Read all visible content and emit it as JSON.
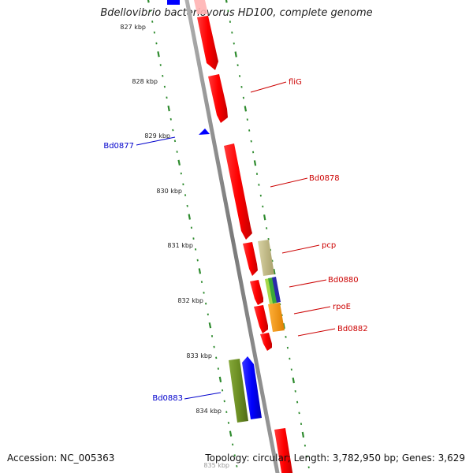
{
  "title": "Bdellovibrio bacteriovorus HD100, complete genome",
  "accession": "Accession: NC_005363",
  "genome_stats": "Topology: circular; Length: 3,782,950 bp; Genes: 3,629",
  "colors": {
    "backbone": "#8a8a8a",
    "tick": "#2e8b2e",
    "forward_gene": "#0000ff",
    "reverse_gene": "#ff0000",
    "forward_label": "#0000cc",
    "reverse_label": "#cc0000",
    "pcp": "#c8c08a",
    "Bd0880": "#a6d84a",
    "rpoE": "#ff9900",
    "Bd0883": "#6b8e23"
  },
  "position_labels": [
    "827 kbp",
    "828 kbp",
    "829 kbp",
    "830 kbp",
    "831 kbp",
    "832 kbp",
    "833 kbp",
    "834 kbp",
    "835 kbp"
  ],
  "gene_labels": [
    {
      "name": "fliG",
      "strand": "reverse"
    },
    {
      "name": "Bd0877",
      "strand": "forward"
    },
    {
      "name": "Bd0878",
      "strand": "reverse"
    },
    {
      "name": "pcp",
      "strand": "reverse"
    },
    {
      "name": "Bd0880",
      "strand": "reverse"
    },
    {
      "name": "rpoE",
      "strand": "reverse"
    },
    {
      "name": "Bd0882",
      "strand": "reverse"
    },
    {
      "name": "Bd0883",
      "strand": "forward"
    }
  ]
}
